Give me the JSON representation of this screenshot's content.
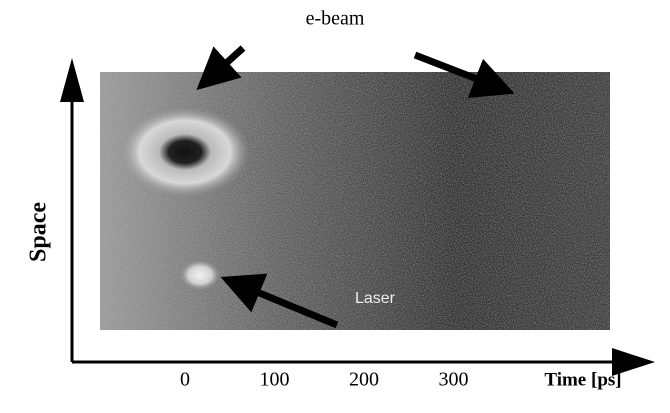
{
  "title": "e-beam",
  "y_label": "Space",
  "x_label": "Time [ps]",
  "x_ticks": [
    0,
    100,
    200,
    300
  ],
  "annotation": "Laser"
}
